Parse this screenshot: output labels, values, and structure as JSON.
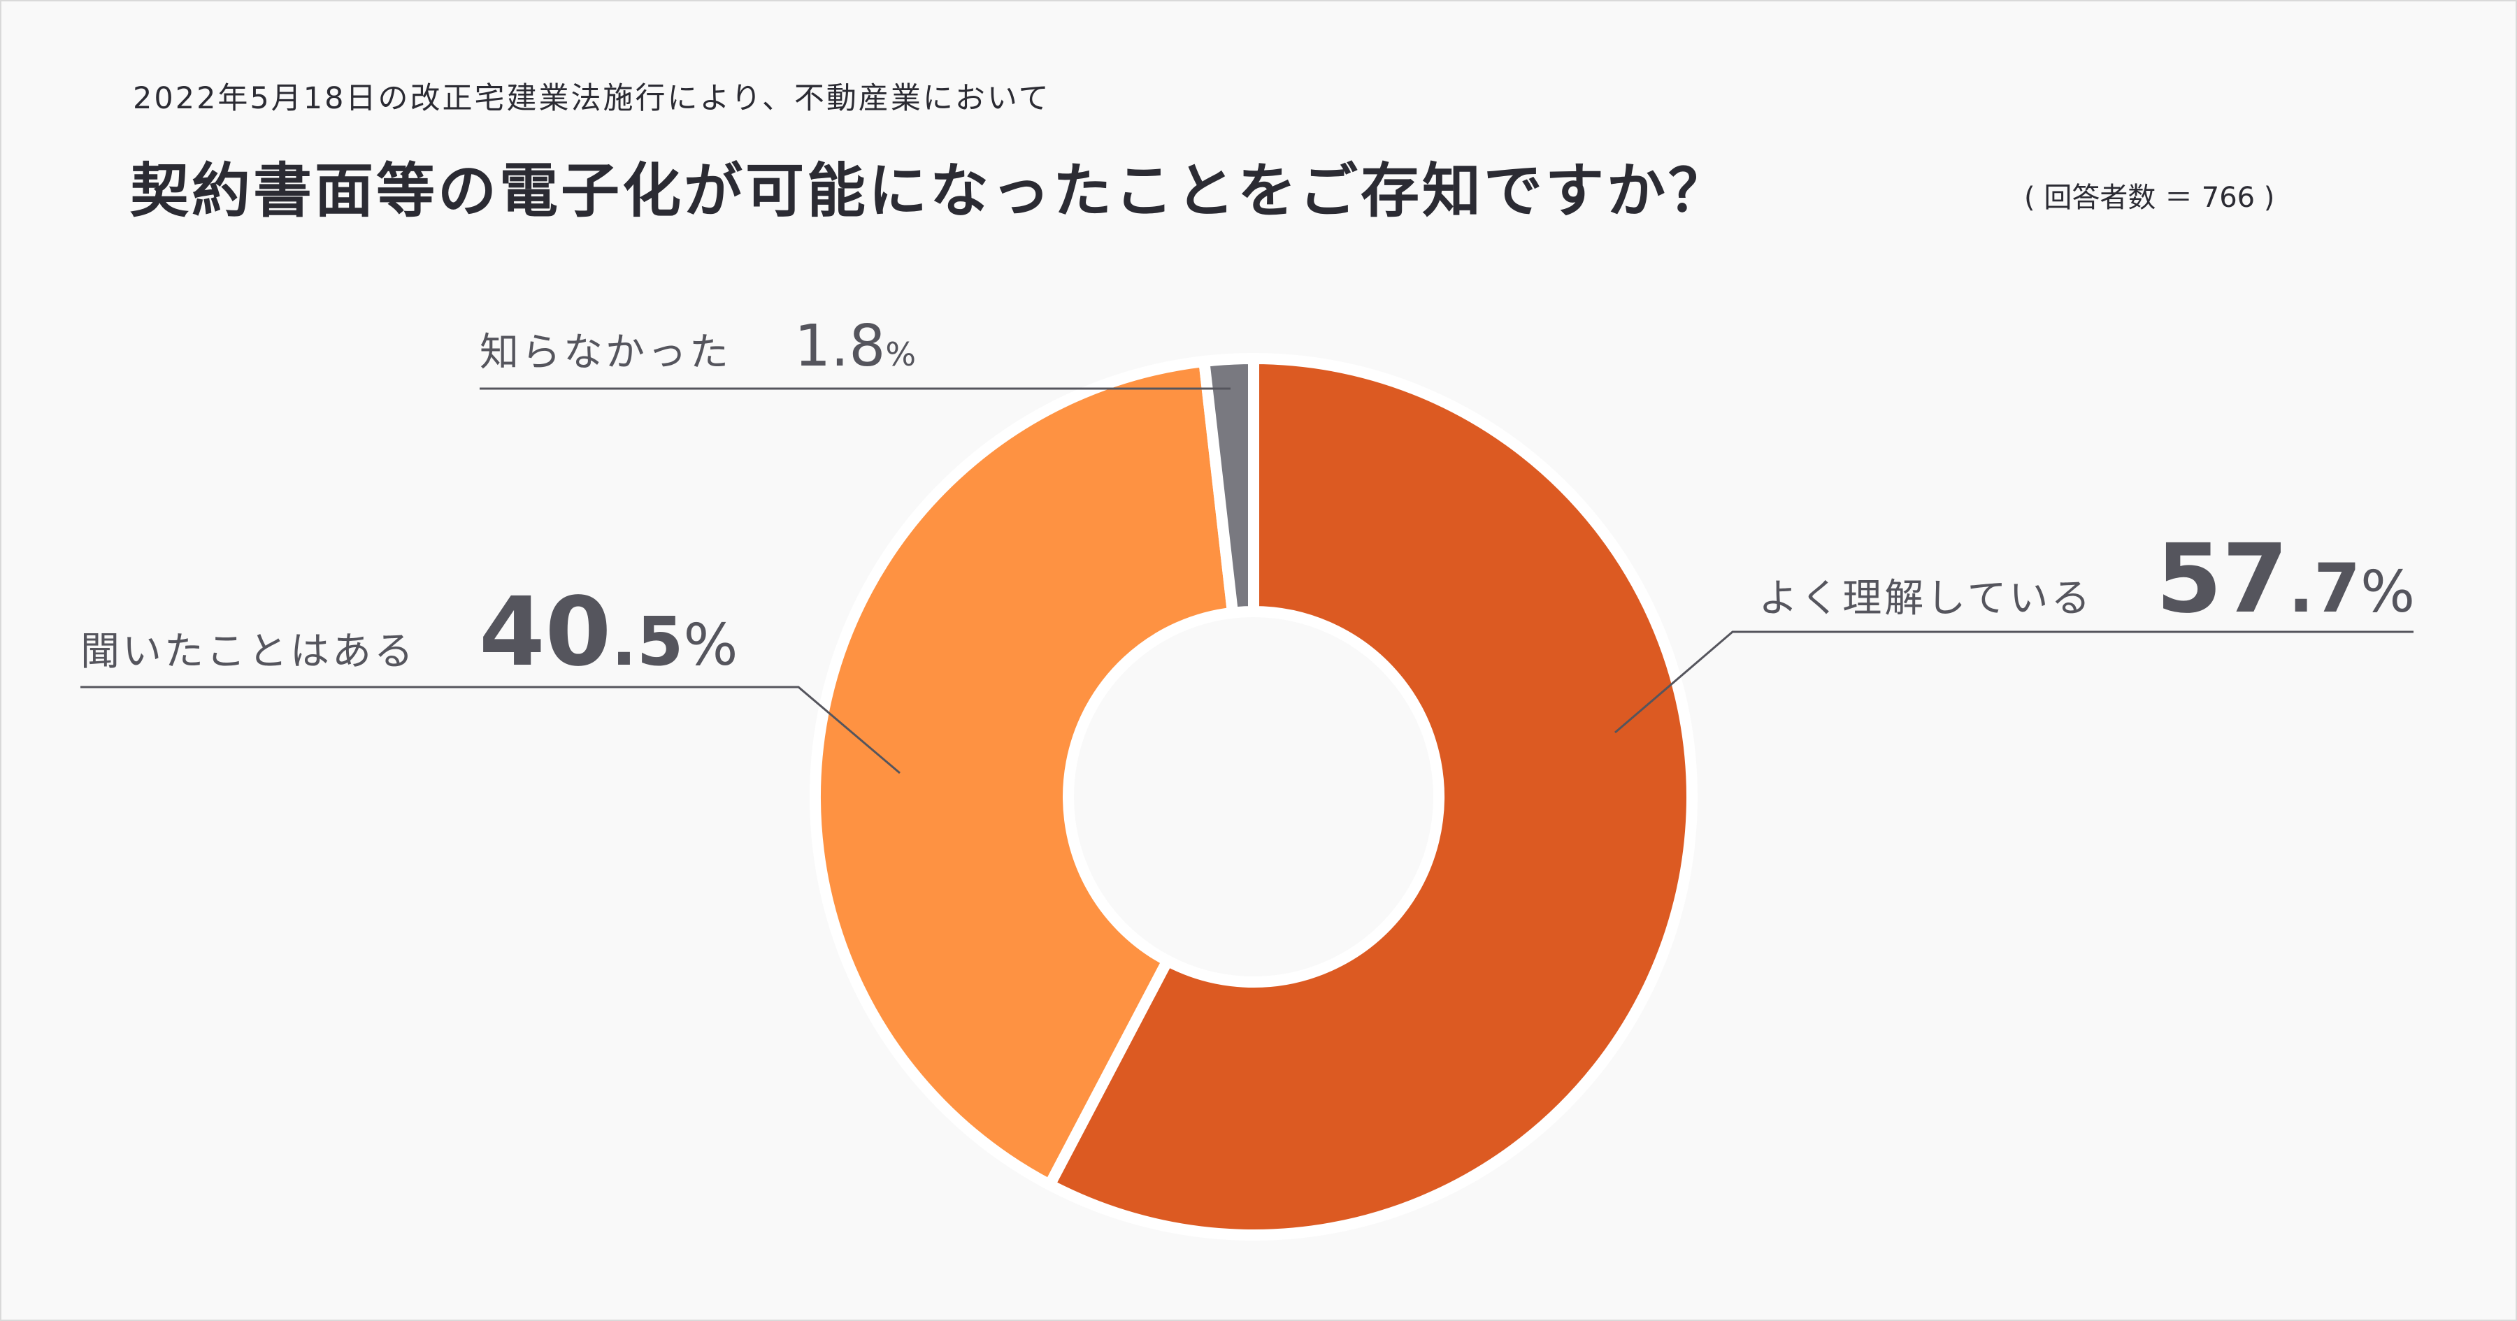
{
  "header": {
    "subtitle": "2022年5月18日の改正宅建業法施行により、不動産業において",
    "title": "契約書面等の電子化が可能になったことをご存知ですか？",
    "respondents": "( 回答者数 ＝ 766 )"
  },
  "chart_data": {
    "type": "pie",
    "variant": "donut",
    "title": "契約書面等の電子化が可能になったことをご存知ですか？",
    "start_angle": "12 o'clock, clockwise",
    "slices": [
      {
        "label": "よく理解している",
        "value": 57.7,
        "int": "57",
        "dec": ".7",
        "unit": "%",
        "color": "#dc5a22"
      },
      {
        "label": "聞いたことはある",
        "value": 40.5,
        "int": "40",
        "dec": ".5",
        "unit": "%",
        "color": "#fe9242"
      },
      {
        "label": "知らなかった",
        "value": 1.8,
        "int": "1",
        "dec": ".8",
        "unit": "%",
        "color": "#797980"
      }
    ],
    "separator_color": "#ffffff",
    "leader_line_color": "#55555d"
  }
}
